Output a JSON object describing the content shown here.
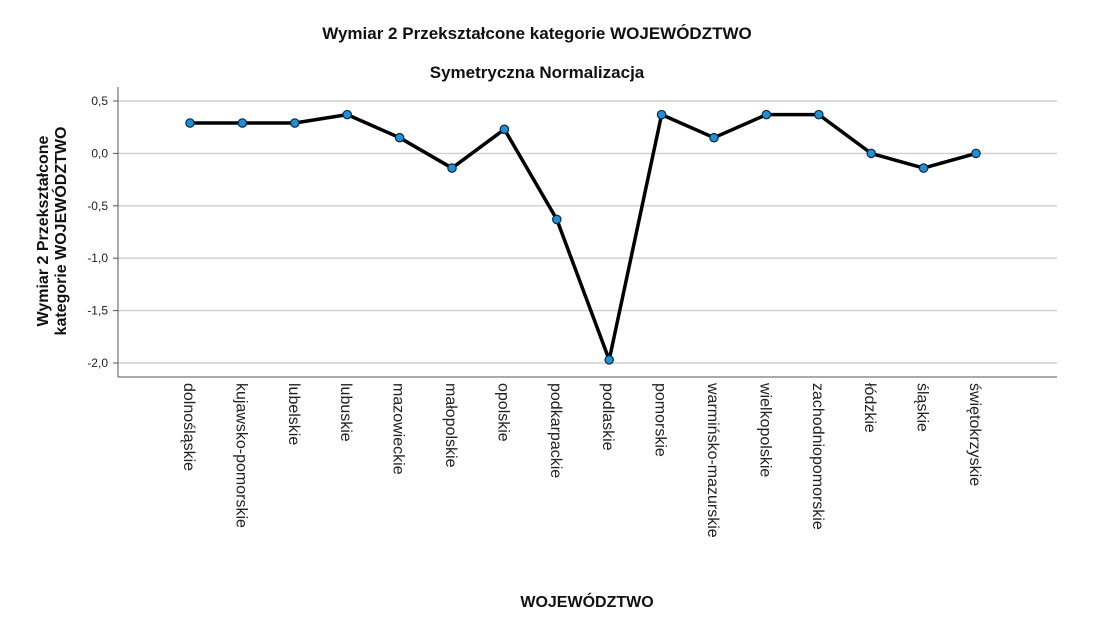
{
  "chart_data": {
    "type": "line",
    "title": "Wymiar 2 Przekształcone kategorie WOJEWÓDZTWO",
    "subtitle": "Symetryczna Normalizacja",
    "xlabel": "WOJEWÓDZTWO",
    "ylabel_lines": [
      "Wymiar 2 Przekształcone",
      "kategorie WOJEWÓDZTWO"
    ],
    "ylim": [
      -2.1,
      0.53
    ],
    "yticks": [
      0.5,
      0.0,
      -0.5,
      -1.0,
      -1.5,
      -2.0
    ],
    "ytick_labels": [
      "0,5",
      "0,0",
      "-0,5",
      "-1,0",
      "-1,5",
      "-2,0"
    ],
    "grid": true,
    "categories": [
      "dolnośląskie",
      "kujawsko-pomorskie",
      "lubelskie",
      "lubuskie",
      "mazowieckie",
      "małopolskie",
      "opolskie",
      "podkarpackie",
      "podlaskie",
      "pomorskie",
      "warmińsko-mazurskie",
      "wielkopolskie",
      "zachodniopomorskie",
      "łódzkie",
      "śląskie",
      "świętokrzyskie"
    ],
    "series": [
      {
        "values": [
          0.29,
          0.29,
          0.29,
          0.37,
          0.15,
          -0.14,
          0.23,
          -0.63,
          -1.97,
          0.37,
          0.15,
          0.37,
          0.37,
          0.0,
          -0.14,
          0.0
        ]
      }
    ],
    "line_color": "#000000",
    "marker_color": "#1f8fd6"
  }
}
